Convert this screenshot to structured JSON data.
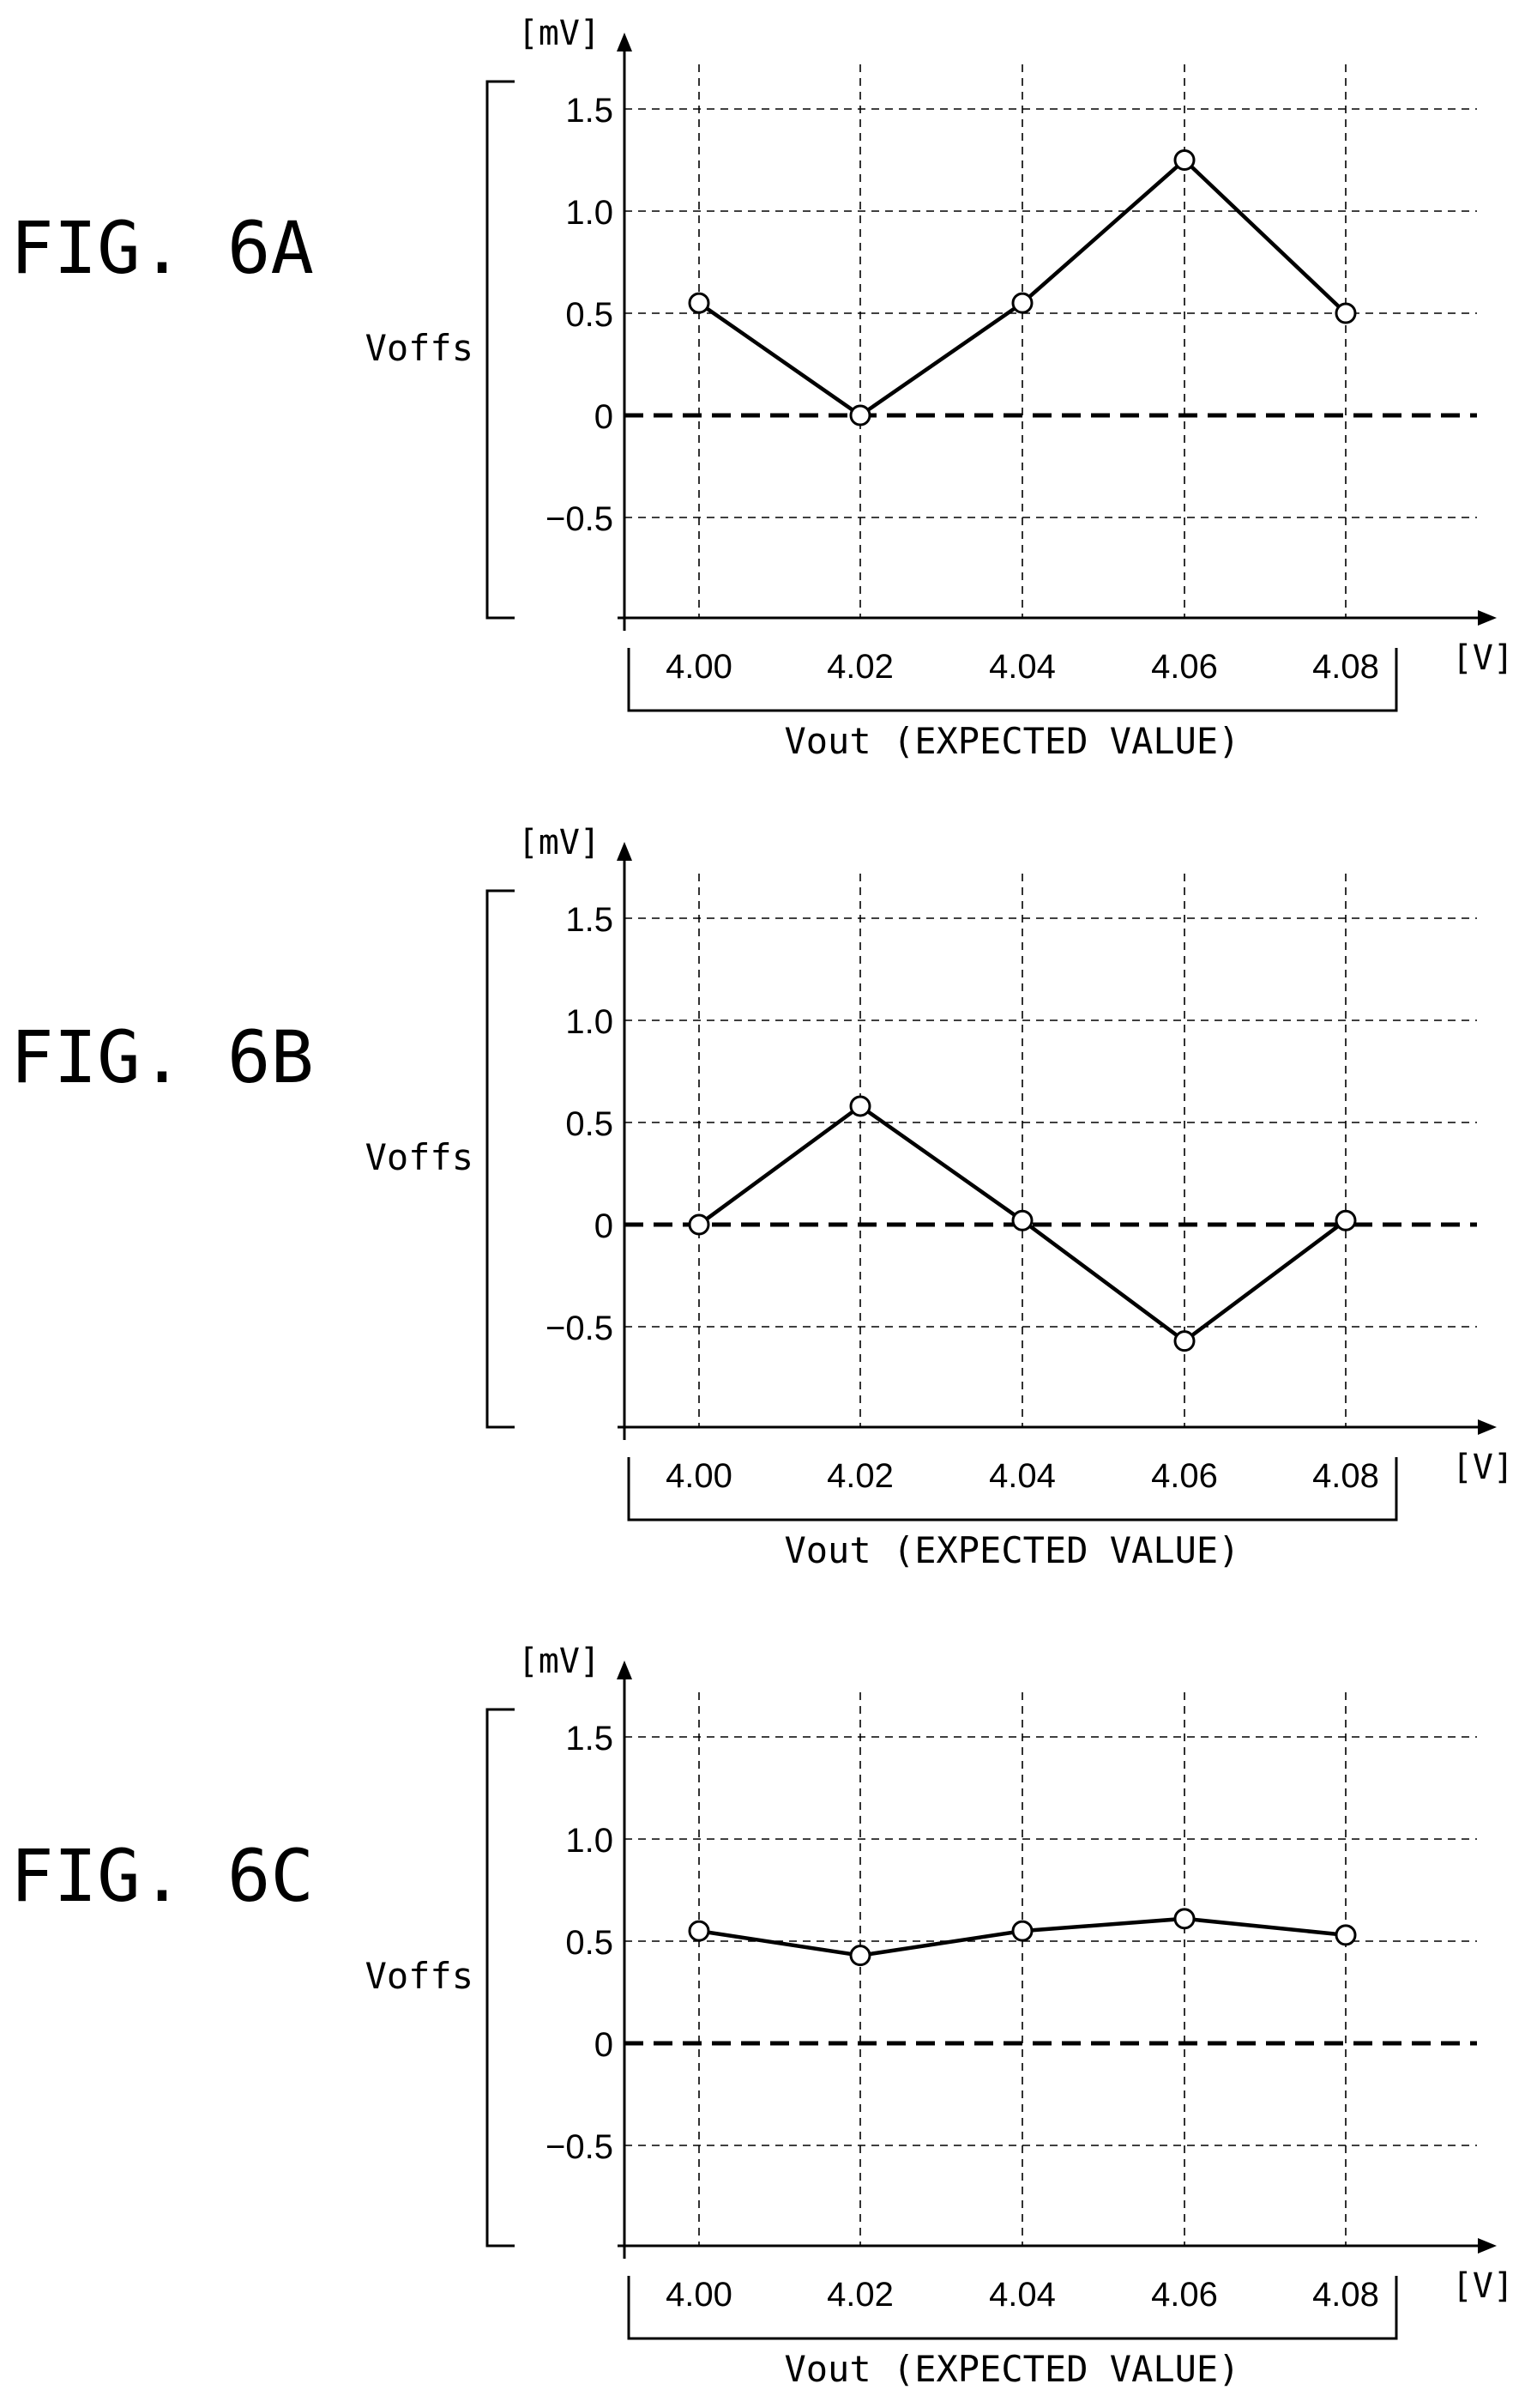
{
  "chart_data": [
    {
      "figure_label": "FIG. 6A",
      "type": "line",
      "xlabel": "Vout (EXPECTED VALUE)",
      "ylabel": "Voffs",
      "x_unit": "[V]",
      "y_unit": "[mV]",
      "categories": [
        "4.00",
        "4.02",
        "4.04",
        "4.06",
        "4.08"
      ],
      "y_ticks": [
        "1.5",
        "1.0",
        "0.5",
        "0",
        "−0.5"
      ],
      "y_tick_values": [
        1.5,
        1.0,
        0.5,
        0,
        -0.5
      ],
      "ylim": [
        -1.0,
        1.75
      ],
      "grid": true,
      "series": [
        {
          "values": [
            0.55,
            0.0,
            0.55,
            1.25,
            0.5
          ]
        }
      ]
    },
    {
      "figure_label": "FIG. 6B",
      "type": "line",
      "xlabel": "Vout (EXPECTED VALUE)",
      "ylabel": "Voffs",
      "x_unit": "[V]",
      "y_unit": "[mV]",
      "categories": [
        "4.00",
        "4.02",
        "4.04",
        "4.06",
        "4.08"
      ],
      "y_ticks": [
        "1.5",
        "1.0",
        "0.5",
        "0",
        "−0.5"
      ],
      "y_tick_values": [
        1.5,
        1.0,
        0.5,
        0,
        -0.5
      ],
      "ylim": [
        -1.0,
        1.75
      ],
      "grid": true,
      "series": [
        {
          "values": [
            0.0,
            0.58,
            0.02,
            -0.57,
            0.02
          ]
        }
      ]
    },
    {
      "figure_label": "FIG. 6C",
      "type": "line",
      "xlabel": "Vout (EXPECTED VALUE)",
      "ylabel": "Voffs",
      "x_unit": "[V]",
      "y_unit": "[mV]",
      "categories": [
        "4.00",
        "4.02",
        "4.04",
        "4.06",
        "4.08"
      ],
      "y_ticks": [
        "1.5",
        "1.0",
        "0.5",
        "0",
        "−0.5"
      ],
      "y_tick_values": [
        1.5,
        1.0,
        0.5,
        0,
        -0.5
      ],
      "ylim": [
        -1.0,
        1.75
      ],
      "grid": true,
      "series": [
        {
          "values": [
            0.55,
            0.43,
            0.55,
            0.61,
            0.53
          ]
        }
      ]
    }
  ]
}
